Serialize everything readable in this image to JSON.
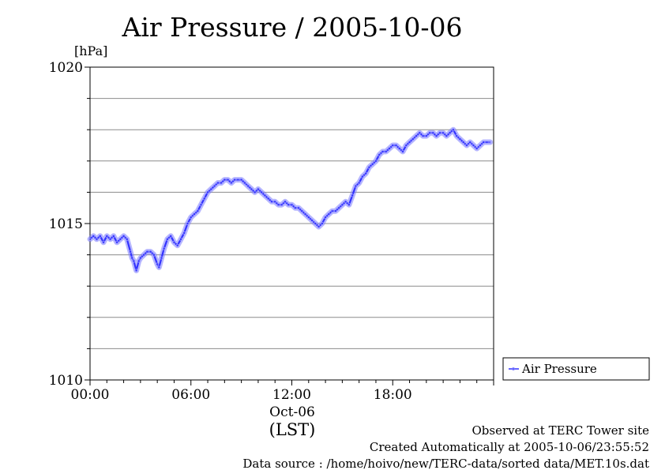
{
  "chart_data": {
    "type": "line",
    "title": "Air Pressure / 2005-10-06",
    "ylabel": "[hPa]",
    "xlabel": "(LST)",
    "x_date_label": "Oct-06",
    "xlim": [
      0,
      24
    ],
    "ylim": [
      1010,
      1020
    ],
    "y_ticks": [
      1010,
      1015,
      1020
    ],
    "y_tick_labels": [
      "1010",
      "1015",
      "1020"
    ],
    "y_gridlines": [
      1011,
      1012,
      1013,
      1014,
      1015,
      1016,
      1017,
      1018,
      1019
    ],
    "x_ticks": [
      0,
      6,
      12,
      18
    ],
    "x_tick_labels": [
      "00:00",
      "06:00",
      "12:00",
      "18:00"
    ],
    "grid": true,
    "legend_position": "right",
    "series": [
      {
        "name": "Air Pressure",
        "color": "#3333ff",
        "x": [
          0.0,
          0.2,
          0.4,
          0.6,
          0.8,
          1.0,
          1.2,
          1.4,
          1.6,
          1.8,
          2.0,
          2.2,
          2.4,
          2.5,
          2.6,
          2.75,
          2.9,
          3.0,
          3.2,
          3.4,
          3.6,
          3.8,
          4.0,
          4.1,
          4.25,
          4.4,
          4.6,
          4.8,
          5.0,
          5.2,
          5.4,
          5.6,
          5.8,
          6.0,
          6.2,
          6.4,
          6.6,
          6.8,
          7.0,
          7.2,
          7.4,
          7.6,
          7.8,
          8.0,
          8.2,
          8.4,
          8.6,
          8.8,
          9.0,
          9.2,
          9.4,
          9.6,
          9.8,
          10.0,
          10.2,
          10.4,
          10.6,
          10.8,
          11.0,
          11.2,
          11.4,
          11.6,
          11.8,
          12.0,
          12.2,
          12.4,
          12.6,
          12.8,
          13.0,
          13.2,
          13.4,
          13.6,
          13.8,
          14.0,
          14.2,
          14.4,
          14.6,
          14.8,
          15.0,
          15.2,
          15.4,
          15.6,
          15.8,
          16.0,
          16.2,
          16.4,
          16.6,
          16.8,
          17.0,
          17.2,
          17.4,
          17.6,
          17.8,
          18.0,
          18.2,
          18.4,
          18.6,
          18.8,
          19.0,
          19.2,
          19.4,
          19.6,
          19.8,
          20.0,
          20.2,
          20.4,
          20.6,
          20.8,
          21.0,
          21.2,
          21.4,
          21.6,
          21.8,
          22.0,
          22.2,
          22.4,
          22.6,
          22.8,
          23.0,
          23.2,
          23.4,
          23.6,
          23.8
        ],
        "y": [
          1014.5,
          1014.6,
          1014.5,
          1014.6,
          1014.4,
          1014.6,
          1014.5,
          1014.6,
          1014.4,
          1014.5,
          1014.6,
          1014.5,
          1014.1,
          1013.9,
          1013.8,
          1013.5,
          1013.8,
          1013.9,
          1014.0,
          1014.1,
          1014.1,
          1014.0,
          1013.7,
          1013.6,
          1013.9,
          1014.2,
          1014.5,
          1014.6,
          1014.4,
          1014.3,
          1014.5,
          1014.7,
          1015.0,
          1015.2,
          1015.3,
          1015.4,
          1015.6,
          1015.8,
          1016.0,
          1016.1,
          1016.2,
          1016.3,
          1016.3,
          1016.4,
          1016.4,
          1016.3,
          1016.4,
          1016.4,
          1016.4,
          1016.3,
          1016.2,
          1016.1,
          1016.0,
          1016.1,
          1016.0,
          1015.9,
          1015.8,
          1015.7,
          1015.7,
          1015.6,
          1015.6,
          1015.7,
          1015.6,
          1015.6,
          1015.5,
          1015.5,
          1015.4,
          1015.3,
          1015.2,
          1015.1,
          1015.0,
          1014.9,
          1015.0,
          1015.2,
          1015.3,
          1015.4,
          1015.4,
          1015.5,
          1015.6,
          1015.7,
          1015.6,
          1015.9,
          1016.2,
          1016.3,
          1016.5,
          1016.6,
          1016.8,
          1016.9,
          1017.0,
          1017.2,
          1017.3,
          1017.3,
          1017.4,
          1017.5,
          1017.5,
          1017.4,
          1017.3,
          1017.5,
          1017.6,
          1017.7,
          1017.8,
          1017.9,
          1017.8,
          1017.8,
          1017.9,
          1017.9,
          1017.8,
          1017.9,
          1017.9,
          1017.8,
          1017.9,
          1018.0,
          1017.8,
          1017.7,
          1017.6,
          1017.5,
          1017.6,
          1017.5,
          1017.4,
          1017.5,
          1017.6,
          1017.6,
          1017.6
        ]
      }
    ]
  },
  "footer": {
    "line1": "Observed at TERC Tower site",
    "line2": "Created Automatically at 2005-10-06/23:55:52",
    "line3": "Data source : /home/hoivo/new/TERC-data/sorted  data/MET.10s.dat"
  }
}
